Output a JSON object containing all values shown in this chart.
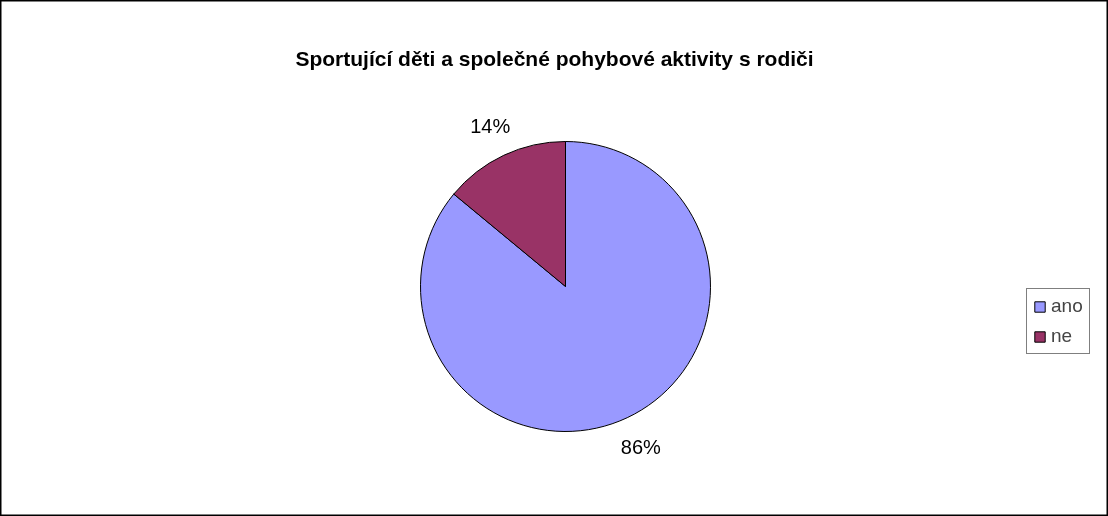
{
  "chart_data": {
    "type": "pie",
    "title": "Sportující děti a společné pohybové aktivity s rodiči",
    "categories": [
      "ano",
      "ne"
    ],
    "values": [
      86,
      14
    ],
    "colors": [
      "#9999ff",
      "#993366"
    ],
    "value_labels": [
      "86%",
      "14%"
    ],
    "legend": "right"
  }
}
